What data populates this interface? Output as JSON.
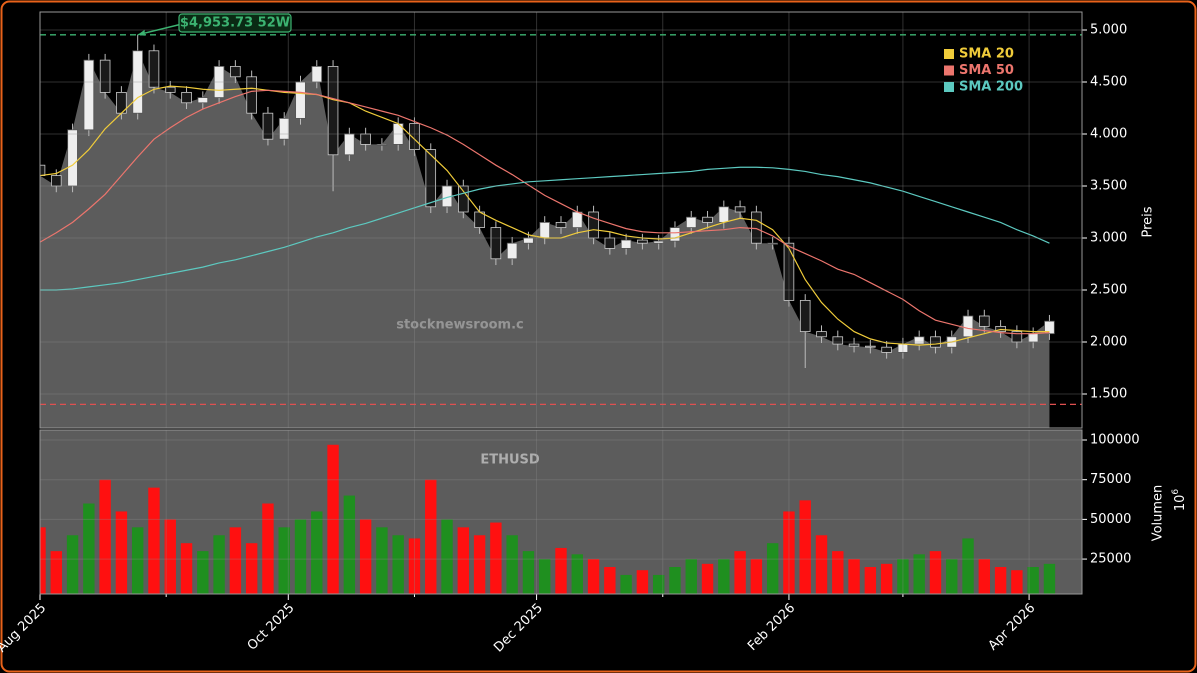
{
  "chart_data": [
    {
      "type": "candlestick",
      "ylabel": "Preis",
      "watermark": "stocknewsroom.c",
      "ylim": [
        1173,
        5173
      ],
      "yticks": [
        {
          "value": 1500,
          "label": "1.500"
        },
        {
          "value": 2000,
          "label": "2.000"
        },
        {
          "value": 2500,
          "label": "2.500"
        },
        {
          "value": 3000,
          "label": "3.000"
        },
        {
          "value": 3500,
          "label": "3.500"
        },
        {
          "value": 4000,
          "label": "4.000"
        },
        {
          "value": 4500,
          "label": "4.500"
        },
        {
          "value": 5000,
          "label": "5.000"
        }
      ],
      "up_color": "#eeeeee",
      "down_color": "#1a1a1a",
      "area_color": "#5c5c5c",
      "open": [
        3700,
        3600,
        3500,
        4040,
        4710,
        4400,
        4200,
        4800,
        4450,
        4400,
        4300,
        4350,
        4650,
        4550,
        4200,
        3950,
        4150,
        4500,
        4650,
        3800,
        4000,
        3900,
        3900,
        4100,
        3850,
        3300,
        3500,
        3250,
        3100,
        2800,
        2950,
        3000,
        3150,
        3100,
        3250,
        3000,
        2900,
        2980,
        2950,
        2970,
        3100,
        3200,
        3150,
        3300,
        3250,
        2950,
        2950,
        2400,
        2100,
        2050,
        1980,
        1960,
        1950,
        1900,
        1980,
        2050,
        1950,
        2050,
        2250,
        2150,
        2100,
        2000,
        2080
      ],
      "high": [
        3760,
        3660,
        4100,
        4770,
        4770,
        4460,
        4953.73,
        4860,
        4510,
        4460,
        4410,
        4710,
        4710,
        4610,
        4260,
        4210,
        4560,
        4710,
        4710,
        4060,
        4060,
        3960,
        4160,
        4160,
        3910,
        3560,
        3560,
        3310,
        3160,
        3010,
        3060,
        3210,
        3210,
        3310,
        3310,
        3060,
        3040,
        3040,
        3030,
        3160,
        3260,
        3260,
        3360,
        3360,
        3310,
        3010,
        3010,
        2460,
        2160,
        2110,
        2040,
        2020,
        2010,
        2040,
        2110,
        2110,
        2110,
        2310,
        2310,
        2210,
        2160,
        2140,
        2260
      ],
      "low": [
        3540,
        3440,
        3440,
        3980,
        4340,
        4140,
        4140,
        4390,
        4340,
        4240,
        4240,
        4290,
        4490,
        4140,
        3890,
        3890,
        4090,
        4440,
        3450,
        3740,
        3840,
        3840,
        3840,
        3790,
        3240,
        3240,
        3190,
        3040,
        2740,
        2740,
        2890,
        2940,
        3040,
        3040,
        2940,
        2840,
        2840,
        2890,
        2890,
        2910,
        3040,
        3090,
        3090,
        3190,
        2890,
        2890,
        2340,
        1750,
        1990,
        1920,
        1900,
        1890,
        1840,
        1840,
        1920,
        1890,
        1890,
        1990,
        2090,
        2040,
        1940,
        1940,
        2020
      ],
      "close": [
        3600,
        3500,
        4040,
        4710,
        4400,
        4200,
        4800,
        4450,
        4400,
        4300,
        4350,
        4650,
        4550,
        4200,
        3950,
        4150,
        4500,
        4650,
        3800,
        4000,
        3900,
        3900,
        4100,
        3850,
        3300,
        3500,
        3250,
        3100,
        2800,
        2950,
        3000,
        3150,
        3100,
        3250,
        3000,
        2900,
        2980,
        2950,
        2970,
        3100,
        3200,
        3150,
        3300,
        3250,
        2950,
        2950,
        2400,
        2100,
        2050,
        1980,
        1960,
        1950,
        1900,
        1980,
        2050,
        1950,
        2050,
        2250,
        2150,
        2100,
        2000,
        2080,
        2200
      ],
      "series": [
        {
          "name": "SMA 20",
          "color": "#f0cc3a",
          "values": [
            3600,
            3620,
            3700,
            3850,
            4050,
            4200,
            4350,
            4430,
            4460,
            4450,
            4430,
            4420,
            4430,
            4440,
            4420,
            4400,
            4390,
            4380,
            4330,
            4300,
            4220,
            4160,
            4100,
            3950,
            3800,
            3650,
            3450,
            3250,
            3170,
            3100,
            3030,
            3000,
            3000,
            3050,
            3080,
            3060,
            3020,
            3000,
            2990,
            3000,
            3050,
            3100,
            3150,
            3190,
            3170,
            3080,
            2900,
            2600,
            2380,
            2220,
            2100,
            2030,
            1990,
            1980,
            1970,
            1980,
            2000,
            2040,
            2080,
            2120,
            2110,
            2100,
            2100
          ]
        },
        {
          "name": "SMA 50",
          "color": "#ec756d",
          "values": [
            2960,
            3050,
            3150,
            3280,
            3420,
            3600,
            3780,
            3950,
            4060,
            4160,
            4240,
            4300,
            4360,
            4410,
            4420,
            4410,
            4400,
            4380,
            4340,
            4300,
            4260,
            4220,
            4180,
            4120,
            4060,
            3990,
            3900,
            3800,
            3700,
            3610,
            3510,
            3410,
            3330,
            3250,
            3190,
            3140,
            3090,
            3060,
            3050,
            3050,
            3060,
            3070,
            3080,
            3100,
            3090,
            3020,
            2920,
            2850,
            2780,
            2700,
            2650,
            2570,
            2490,
            2410,
            2300,
            2210,
            2170,
            2130,
            2110,
            2090,
            2080,
            2080,
            2090
          ]
        },
        {
          "name": "SMA 200",
          "color": "#5cc9c0",
          "values": [
            2500,
            2500,
            2510,
            2530,
            2550,
            2570,
            2600,
            2630,
            2660,
            2690,
            2720,
            2760,
            2790,
            2830,
            2870,
            2910,
            2960,
            3010,
            3050,
            3100,
            3140,
            3190,
            3240,
            3290,
            3340,
            3390,
            3430,
            3470,
            3500,
            3520,
            3540,
            3550,
            3560,
            3570,
            3580,
            3590,
            3600,
            3610,
            3620,
            3630,
            3640,
            3660,
            3670,
            3680,
            3680,
            3675,
            3660,
            3640,
            3610,
            3590,
            3560,
            3530,
            3490,
            3450,
            3400,
            3350,
            3300,
            3250,
            3200,
            3150,
            3080,
            3020,
            2950
          ]
        }
      ],
      "hlines": [
        {
          "value": 4953.73,
          "color": "#3cb371"
        },
        {
          "value": 1400,
          "color": "#e05050"
        }
      ],
      "annotation": "$4,953.73 52W",
      "grid": true
    },
    {
      "type": "bar",
      "ylabel": "Volumen",
      "offset_text": {
        "base": "10",
        "exponent": "6"
      },
      "watermark": "ETHUSD",
      "ylim": [
        3000,
        106300
      ],
      "yticks": [
        25000,
        50000,
        75000,
        100000
      ],
      "up_color": "#1f8f1f",
      "down_color": "#ff1010",
      "values": [
        45000,
        30000,
        40000,
        60000,
        75000,
        55000,
        45000,
        70000,
        50000,
        35000,
        30000,
        40000,
        45000,
        35000,
        60000,
        45000,
        50000,
        55000,
        97000,
        65000,
        50000,
        45000,
        40000,
        38000,
        75000,
        50000,
        45000,
        40000,
        48000,
        40000,
        30000,
        25000,
        32000,
        28000,
        25000,
        20000,
        15000,
        18000,
        15000,
        20000,
        25000,
        22000,
        25000,
        30000,
        25000,
        35000,
        55000,
        62000,
        40000,
        30000,
        25000,
        20000,
        22000,
        25000,
        28000,
        30000,
        25000,
        38000,
        25000,
        20000,
        18000,
        20000,
        22000
      ],
      "xlim": [
        0,
        64
      ],
      "xticks": [
        {
          "value": 0,
          "label": "Aug 2025"
        },
        {
          "value": 15.25,
          "label": "Oct 2025"
        },
        {
          "value": 30.5,
          "label": "Dec 2025"
        },
        {
          "value": 46,
          "label": "Feb 2026"
        },
        {
          "value": 60.75,
          "label": "Apr 2026"
        }
      ],
      "xminorticks": [
        7.75,
        23,
        38.25,
        53
      ],
      "grid": true
    }
  ]
}
